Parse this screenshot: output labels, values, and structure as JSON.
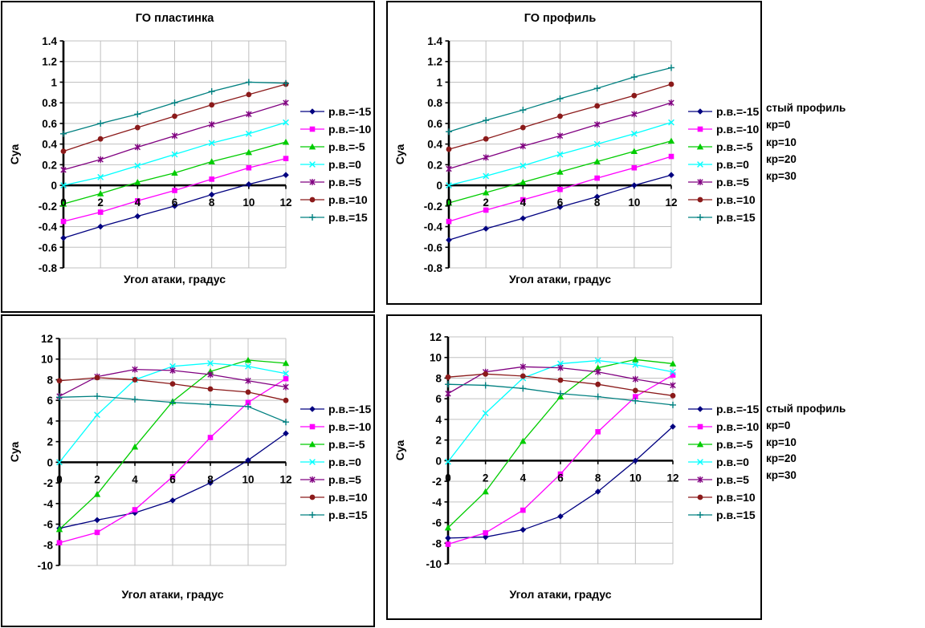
{
  "page": {
    "background": "#FFFFFF"
  },
  "chart_data": [
    {
      "id": "go-plastinka",
      "type": "line",
      "title": "ГО пластинка",
      "xlabel": "Угол атаки, градус",
      "ylabel": "Суа",
      "x": [
        0,
        2,
        4,
        6,
        8,
        10,
        12
      ],
      "xlim": [
        0,
        12
      ],
      "xstep": 2,
      "ylim": [
        -0.8,
        1.4
      ],
      "ystep": 0.2,
      "ydecimals": 1,
      "grid": true,
      "legend_position": "right",
      "series": [
        {
          "name": "р.в.=-15",
          "color": "#000080",
          "marker": "diamond",
          "values": [
            -0.51,
            -0.4,
            -0.3,
            -0.2,
            -0.09,
            0.01,
            0.1
          ]
        },
        {
          "name": "р.в.=-10",
          "color": "#FF00FF",
          "marker": "square",
          "values": [
            -0.35,
            -0.26,
            -0.15,
            -0.05,
            0.06,
            0.17,
            0.26
          ]
        },
        {
          "name": "р.в.=-5",
          "color": "#00CC00",
          "marker": "triangle",
          "values": [
            -0.18,
            -0.08,
            0.03,
            0.12,
            0.23,
            0.32,
            0.42
          ]
        },
        {
          "name": "р.в.=0",
          "color": "#00FFFF",
          "marker": "x",
          "values": [
            0.0,
            0.08,
            0.19,
            0.3,
            0.41,
            0.5,
            0.61
          ]
        },
        {
          "name": "р.в.=5",
          "color": "#800080",
          "marker": "star",
          "values": [
            0.15,
            0.25,
            0.37,
            0.48,
            0.59,
            0.69,
            0.8
          ]
        },
        {
          "name": "р.в.=10",
          "color": "#8B1A1A",
          "marker": "circle",
          "values": [
            0.33,
            0.45,
            0.56,
            0.67,
            0.78,
            0.88,
            0.98
          ]
        },
        {
          "name": "р.в.=15",
          "color": "#008080",
          "marker": "plus",
          "values": [
            0.5,
            0.6,
            0.69,
            0.8,
            0.91,
            1.0,
            0.99
          ]
        }
      ],
      "side_labels": []
    },
    {
      "id": "go-profil",
      "type": "line",
      "title": "ГО профиль",
      "xlabel": "Угол атаки, градус",
      "ylabel": "Суа",
      "x": [
        0,
        2,
        4,
        6,
        8,
        10,
        12
      ],
      "xlim": [
        0,
        12
      ],
      "xstep": 2,
      "ylim": [
        -0.8,
        1.4
      ],
      "ystep": 0.2,
      "ydecimals": 1,
      "grid": true,
      "legend_position": "right",
      "series": [
        {
          "name": "р.в.=-15",
          "color": "#000080",
          "marker": "diamond",
          "values": [
            -0.53,
            -0.42,
            -0.32,
            -0.21,
            -0.11,
            0.0,
            0.1
          ]
        },
        {
          "name": "р.в.=-10",
          "color": "#FF00FF",
          "marker": "square",
          "values": [
            -0.35,
            -0.24,
            -0.14,
            -0.04,
            0.07,
            0.17,
            0.28
          ]
        },
        {
          "name": "р.в.=-5",
          "color": "#00CC00",
          "marker": "triangle",
          "values": [
            -0.17,
            -0.07,
            0.03,
            0.13,
            0.23,
            0.33,
            0.43
          ]
        },
        {
          "name": "р.в.=0",
          "color": "#00FFFF",
          "marker": "x",
          "values": [
            0.0,
            0.09,
            0.19,
            0.3,
            0.4,
            0.5,
            0.61
          ]
        },
        {
          "name": "р.в.=5",
          "color": "#800080",
          "marker": "star",
          "values": [
            0.16,
            0.27,
            0.38,
            0.48,
            0.59,
            0.69,
            0.8
          ]
        },
        {
          "name": "р.в.=10",
          "color": "#8B1A1A",
          "marker": "circle",
          "values": [
            0.35,
            0.45,
            0.56,
            0.67,
            0.77,
            0.87,
            0.98
          ]
        },
        {
          "name": "р.в.=15",
          "color": "#008080",
          "marker": "plus",
          "values": [
            0.52,
            0.63,
            0.73,
            0.84,
            0.94,
            1.05,
            1.14
          ]
        }
      ],
      "side_labels": [
        "стый профиль",
        "кр=0",
        "кр=10",
        "кр=20",
        "кр=30"
      ]
    },
    {
      "id": "bottom-left",
      "type": "line",
      "title": "",
      "xlabel": "Угол атаки, градус",
      "ylabel": "Суа",
      "x": [
        0,
        2,
        4,
        6,
        8,
        10,
        12
      ],
      "xlim": [
        0,
        12
      ],
      "xstep": 2,
      "ylim": [
        -10,
        12
      ],
      "ystep": 2,
      "ydecimals": 0,
      "grid": true,
      "legend_position": "right",
      "series": [
        {
          "name": "р.в.=-15",
          "color": "#000080",
          "marker": "diamond",
          "values": [
            -6.4,
            -5.6,
            -4.9,
            -3.7,
            -2.0,
            0.2,
            2.8
          ]
        },
        {
          "name": "р.в.=-10",
          "color": "#FF00FF",
          "marker": "square",
          "values": [
            -7.8,
            -6.8,
            -4.6,
            -1.4,
            2.4,
            5.8,
            8.1
          ]
        },
        {
          "name": "р.в.=-5",
          "color": "#00CC00",
          "marker": "triangle",
          "values": [
            -6.5,
            -3.1,
            1.5,
            5.9,
            8.8,
            9.9,
            9.6
          ]
        },
        {
          "name": "р.в.=0",
          "color": "#00FFFF",
          "marker": "x",
          "values": [
            0.0,
            4.6,
            8.0,
            9.3,
            9.6,
            9.3,
            8.6
          ]
        },
        {
          "name": "р.в.=5",
          "color": "#800080",
          "marker": "star",
          "values": [
            6.4,
            8.3,
            9.0,
            8.9,
            8.5,
            7.9,
            7.3
          ]
        },
        {
          "name": "р.в.=10",
          "color": "#8B1A1A",
          "marker": "circle",
          "values": [
            7.9,
            8.2,
            8.0,
            7.6,
            7.1,
            6.8,
            6.0
          ]
        },
        {
          "name": "р.в.=15",
          "color": "#008080",
          "marker": "plus",
          "values": [
            6.3,
            6.4,
            6.1,
            5.8,
            5.6,
            5.4,
            3.9
          ]
        }
      ],
      "side_labels": []
    },
    {
      "id": "bottom-right",
      "type": "line",
      "title": "",
      "xlabel": "Угол атаки, градус",
      "ylabel": "Суа",
      "x": [
        0,
        2,
        4,
        6,
        8,
        10,
        12
      ],
      "xlim": [
        0,
        12
      ],
      "xstep": 2,
      "ylim": [
        -10,
        12
      ],
      "ystep": 2,
      "ydecimals": 0,
      "grid": true,
      "legend_position": "right",
      "series": [
        {
          "name": "р.в.=-15",
          "color": "#000080",
          "marker": "diamond",
          "values": [
            -7.5,
            -7.4,
            -6.7,
            -5.4,
            -3.0,
            0.0,
            3.3
          ]
        },
        {
          "name": "р.в.=-10",
          "color": "#FF00FF",
          "marker": "square",
          "values": [
            -8.1,
            -7.0,
            -4.8,
            -1.3,
            2.8,
            6.2,
            8.3
          ]
        },
        {
          "name": "р.в.=-5",
          "color": "#00CC00",
          "marker": "triangle",
          "values": [
            -6.5,
            -3.0,
            1.9,
            6.2,
            9.0,
            9.8,
            9.4
          ]
        },
        {
          "name": "р.в.=0",
          "color": "#00FFFF",
          "marker": "x",
          "values": [
            -0.1,
            4.6,
            8.0,
            9.4,
            9.7,
            9.3,
            8.6
          ]
        },
        {
          "name": "р.в.=5",
          "color": "#800080",
          "marker": "star",
          "values": [
            6.5,
            8.6,
            9.1,
            9.0,
            8.6,
            7.9,
            7.3
          ]
        },
        {
          "name": "р.в.=10",
          "color": "#8B1A1A",
          "marker": "circle",
          "values": [
            8.1,
            8.4,
            8.2,
            7.8,
            7.4,
            6.8,
            6.3
          ]
        },
        {
          "name": "р.в.=15",
          "color": "#008080",
          "marker": "plus",
          "values": [
            7.4,
            7.3,
            7.0,
            6.5,
            6.2,
            5.8,
            5.4
          ]
        }
      ],
      "side_labels": [
        "стый профиль",
        "кр=0",
        "кр=10",
        "кр=20",
        "кр=30"
      ]
    }
  ],
  "style": {
    "gridline_color": "#C0C0C0",
    "axis_color": "#000000",
    "text_color": "#000000"
  }
}
